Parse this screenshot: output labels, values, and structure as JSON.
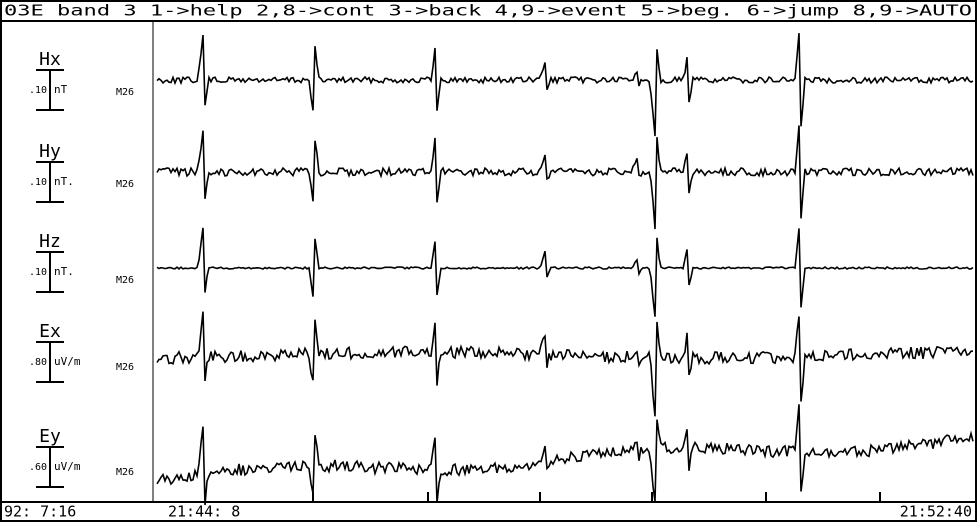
{
  "header": "03E band 3 1->help 2,8->cont 3->back 4,9->event 5->beg. 6->jump 8,9->AUTO",
  "channels": [
    {
      "name": "Hx",
      "scale": ".10",
      "unit": "nT",
      "site": "M26"
    },
    {
      "name": "Hy",
      "scale": ".10",
      "unit": "nT.",
      "site": "M26"
    },
    {
      "name": "Hz",
      "scale": ".10",
      "unit": "nT.",
      "site": "M26"
    },
    {
      "name": "Ex",
      "scale": ".80",
      "unit": "uV/m",
      "site": "M26"
    },
    {
      "name": "Ey",
      "scale": ".60",
      "unit": "uV/m",
      "site": "M26"
    }
  ],
  "footer": {
    "date": "92: 7:16",
    "start": "21:44: 8",
    "end": "21:52:40"
  }
}
